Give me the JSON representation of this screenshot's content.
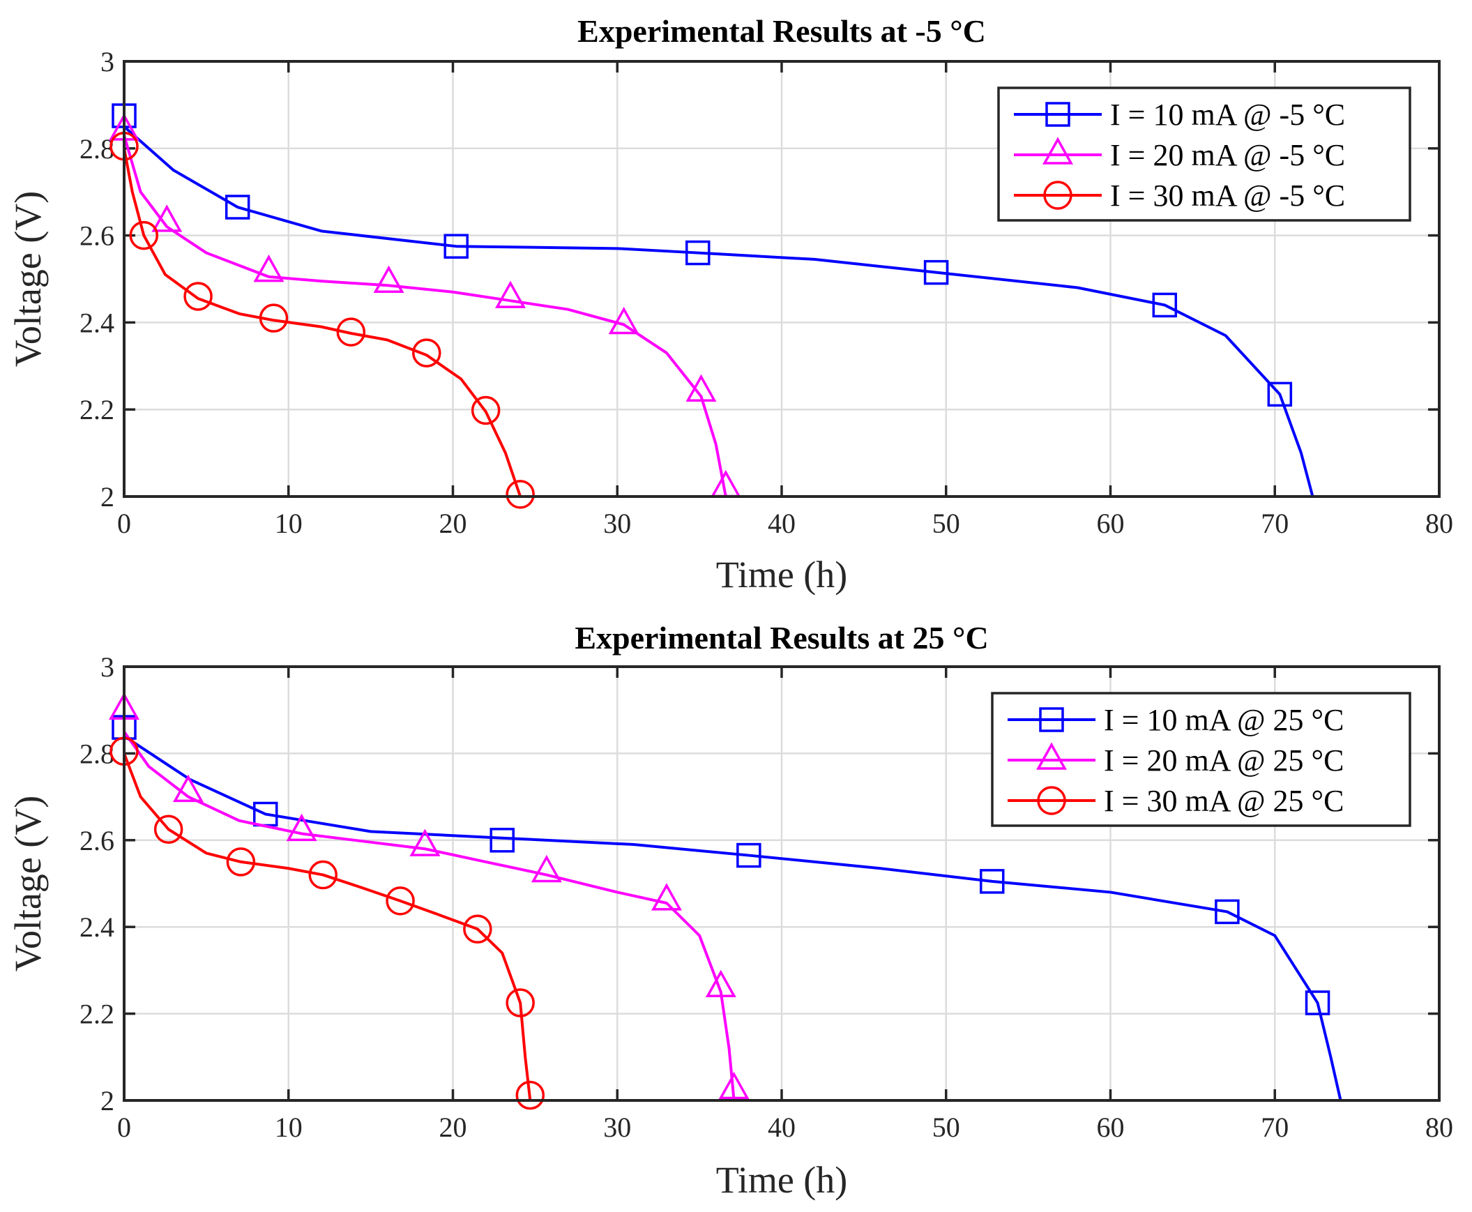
{
  "chart_data": [
    {
      "type": "line",
      "title": "Experimental Results at -5 °C",
      "xlabel": "Time (h)",
      "ylabel": "Voltage (V)",
      "xlim": [
        0,
        80
      ],
      "ylim": [
        2,
        3
      ],
      "xticks": [
        "0",
        "10",
        "20",
        "30",
        "40",
        "50",
        "60",
        "70",
        "80"
      ],
      "yticks": [
        "2",
        "2.2",
        "2.4",
        "2.6",
        "2.8",
        "3"
      ],
      "grid": true,
      "legend_position": "top-right",
      "series": [
        {
          "name": "I = 10 mA @ -5 °C",
          "color": "#0000ff",
          "marker": "square",
          "x": [
            0,
            3,
            6.9,
            12,
            20.2,
            30,
            34.9,
            42,
            49.4,
            58,
            63.3,
            67,
            70.3,
            71.6,
            72.3
          ],
          "y": [
            2.85,
            2.75,
            2.665,
            2.61,
            2.575,
            2.57,
            2.56,
            2.545,
            2.515,
            2.48,
            2.44,
            2.37,
            2.235,
            2.1,
            2.0
          ],
          "markers_x": [
            0,
            6.9,
            20.2,
            34.9,
            49.4,
            63.3,
            70.3
          ],
          "markers_y": [
            2.875,
            2.665,
            2.575,
            2.56,
            2.515,
            2.44,
            2.235
          ]
        },
        {
          "name": "I = 20 mA @ -5 °C",
          "color": "#ff00ff",
          "marker": "triangle",
          "x": [
            0,
            1,
            2.6,
            5,
            8.8,
            12,
            16.1,
            20,
            23.5,
            27,
            30.4,
            33,
            35.1,
            36,
            36.6
          ],
          "y": [
            2.83,
            2.7,
            2.62,
            2.56,
            2.505,
            2.495,
            2.485,
            2.47,
            2.45,
            2.43,
            2.395,
            2.33,
            2.23,
            2.12,
            2.0
          ],
          "markers_x": [
            0,
            2.6,
            8.8,
            16.1,
            23.5,
            30.4,
            35.1,
            36.6
          ],
          "markers_y": [
            2.84,
            2.63,
            2.515,
            2.49,
            2.455,
            2.395,
            2.24,
            2.02
          ]
        },
        {
          "name": "I = 30 mA @ -5 °C",
          "color": "#ff0000",
          "marker": "circle",
          "x": [
            0,
            0.5,
            1.2,
            2.5,
            4.5,
            7,
            9.1,
            12,
            13.8,
            16,
            18.4,
            20.5,
            22,
            23.2,
            24.1
          ],
          "y": [
            2.8,
            2.7,
            2.6,
            2.51,
            2.455,
            2.42,
            2.405,
            2.39,
            2.375,
            2.36,
            2.325,
            2.27,
            2.195,
            2.1,
            2.0
          ],
          "markers_x": [
            0,
            1.2,
            4.5,
            9.1,
            13.8,
            18.4,
            22,
            24.1
          ],
          "markers_y": [
            2.805,
            2.6,
            2.46,
            2.41,
            2.378,
            2.33,
            2.198,
            2.005
          ]
        }
      ]
    },
    {
      "type": "line",
      "title": "Experimental Results at 25 °C",
      "xlabel": "Time (h)",
      "ylabel": "Voltage (V)",
      "xlim": [
        0,
        80
      ],
      "ylim": [
        2,
        3
      ],
      "xticks": [
        "0",
        "10",
        "20",
        "30",
        "40",
        "50",
        "60",
        "70",
        "80"
      ],
      "yticks": [
        "2",
        "2.2",
        "2.4",
        "2.6",
        "2.8",
        "3"
      ],
      "grid": true,
      "legend_position": "top-right",
      "series": [
        {
          "name": "I = 10 mA @ 25 °C",
          "color": "#0000ff",
          "marker": "square",
          "x": [
            0,
            4,
            8.6,
            15,
            23,
            31,
            38,
            46,
            52.8,
            60,
            67.1,
            70,
            72.6,
            73.4,
            74
          ],
          "y": [
            2.84,
            2.74,
            2.66,
            2.62,
            2.605,
            2.59,
            2.565,
            2.535,
            2.505,
            2.48,
            2.435,
            2.38,
            2.225,
            2.1,
            2.0
          ],
          "markers_x": [
            0,
            8.6,
            23,
            38,
            52.8,
            67.1,
            72.6
          ],
          "markers_y": [
            2.86,
            2.66,
            2.6,
            2.565,
            2.505,
            2.435,
            2.225
          ]
        },
        {
          "name": "I = 20 mA @ 25 °C",
          "color": "#ff00ff",
          "marker": "triangle",
          "x": [
            0,
            1.5,
            3.9,
            7,
            10.8,
            14,
            18.3,
            22,
            25.7,
            30,
            33,
            35,
            36.3,
            36.8,
            37.1
          ],
          "y": [
            2.85,
            2.77,
            2.7,
            2.645,
            2.615,
            2.6,
            2.58,
            2.55,
            2.52,
            2.48,
            2.455,
            2.38,
            2.25,
            2.12,
            2.0
          ],
          "markers_x": [
            0,
            3.9,
            10.8,
            18.3,
            25.7,
            33,
            36.3,
            37.1
          ],
          "markers_y": [
            2.9,
            2.71,
            2.62,
            2.585,
            2.525,
            2.46,
            2.26,
            2.025
          ]
        },
        {
          "name": "I = 30 mA @ 25 °C",
          "color": "#ff0000",
          "marker": "circle",
          "x": [
            0,
            1,
            2.7,
            5,
            7.1,
            10,
            12.1,
            14.5,
            16.8,
            19,
            21.5,
            23,
            24.1,
            24.4,
            24.7
          ],
          "y": [
            2.8,
            2.7,
            2.625,
            2.57,
            2.55,
            2.535,
            2.52,
            2.49,
            2.46,
            2.43,
            2.395,
            2.34,
            2.225,
            2.1,
            2.0
          ],
          "markers_x": [
            0,
            2.7,
            7.1,
            12.1,
            16.8,
            21.5,
            24.1,
            24.7
          ],
          "markers_y": [
            2.805,
            2.625,
            2.55,
            2.52,
            2.46,
            2.395,
            2.225,
            2.012
          ]
        }
      ]
    }
  ]
}
